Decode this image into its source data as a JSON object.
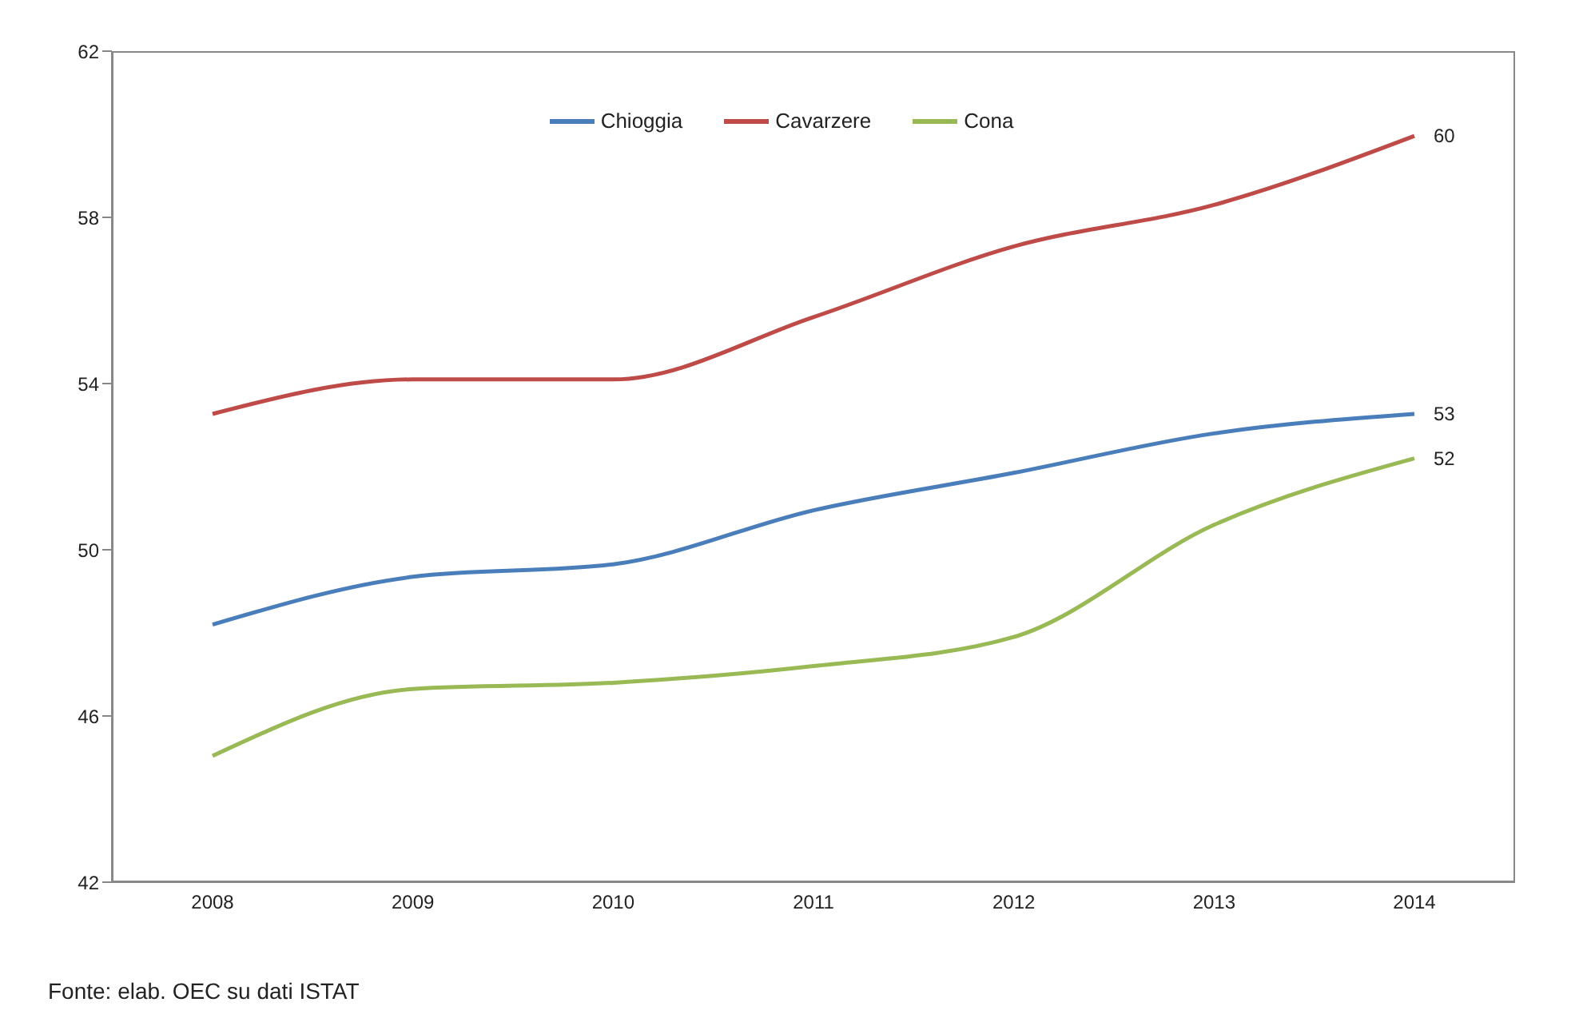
{
  "chart_data": {
    "type": "line",
    "categories": [
      "2008",
      "2009",
      "2010",
      "2011",
      "2012",
      "2013",
      "2014"
    ],
    "series": [
      {
        "name": "Chioggia",
        "color": "#4a7ebb",
        "values": [
          48.2,
          49.35,
          49.65,
          50.95,
          51.85,
          52.8,
          53.27
        ],
        "value_labels": [
          null,
          null,
          null,
          null,
          null,
          null,
          "53"
        ]
      },
      {
        "name": "Cavarzere",
        "color": "#be4b48",
        "values": [
          53.27,
          54.1,
          54.1,
          55.6,
          57.3,
          58.3,
          59.96
        ],
        "value_labels": [
          null,
          null,
          null,
          null,
          null,
          null,
          "60"
        ]
      },
      {
        "name": "Cona",
        "color": "#98b954",
        "values": [
          45.04,
          46.65,
          46.8,
          47.2,
          47.9,
          50.6,
          52.2
        ],
        "value_labels": [
          null,
          null,
          null,
          null,
          null,
          null,
          "52"
        ]
      }
    ],
    "ylim": [
      42,
      62
    ],
    "yticks": [
      42,
      46,
      50,
      54,
      58,
      62
    ],
    "grid": false,
    "legend": "top",
    "marker": "none",
    "line_style": "solid",
    "annotations": [
      "Fonte: elab. OEC su dati ISTAT"
    ]
  }
}
